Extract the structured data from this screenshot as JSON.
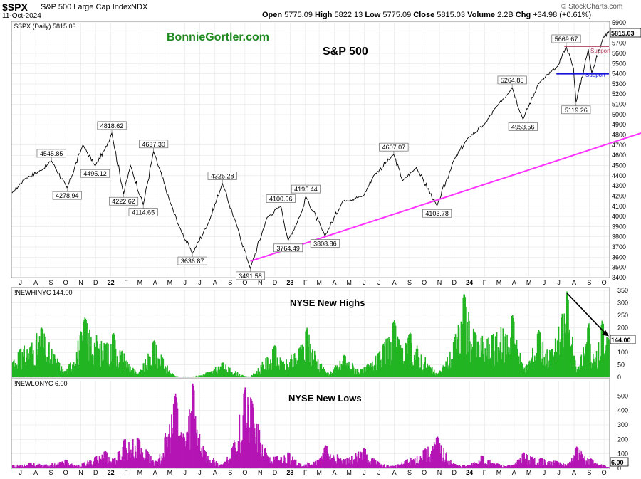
{
  "header": {
    "symbol": "$SPX",
    "name": "S&P 500 Large Cap Index",
    "exchange": "INDX",
    "date": "11-Oct-2024",
    "open_label": "Open",
    "open": "5775.09",
    "high_label": "High",
    "high": "5822.13",
    "low_label": "Low",
    "low": "5775.09",
    "close_label": "Close",
    "close": "5815.03",
    "volume_label": "Volume",
    "volume": "2.2B",
    "chg_label": "Chg",
    "chg": "+34.98 (+0.61%)",
    "copyright": "© StockCharts.com"
  },
  "panels": {
    "price_legend": "$SPX (Daily) 5815.03",
    "watermark": "BonnieGortler.com",
    "price_title": "S&P 500",
    "support_label": "Support",
    "support_label_2": "Support",
    "highs_legend": "!NEWHINYC 144.00",
    "highs_title": "NYSE New Highs",
    "highs_last": "144.00",
    "lows_legend": "!NEWLONYC 6.00",
    "lows_title": "NYSE New Lows",
    "lows_last": "6.00"
  },
  "colors": {
    "price": "#000000",
    "highs": "#22b522",
    "lows": "#b515b5",
    "trendline": "#ff33ff",
    "support": "#1414d8",
    "resistance": "#b34060",
    "watermark": "#1f8a1f",
    "arrow": "#000000"
  },
  "chart_data": [
    {
      "type": "line",
      "title": "S&P 500",
      "series_name": "$SPX (Daily)",
      "ylim": [
        3400,
        5900
      ],
      "y_ticks": [
        3400,
        3500,
        3600,
        3700,
        3800,
        3900,
        4000,
        4100,
        4200,
        4300,
        4400,
        4500,
        4600,
        4700,
        4800,
        4900,
        5000,
        5100,
        5200,
        5300,
        5400,
        5500,
        5600,
        5700,
        5800,
        5900
      ],
      "x_ticks": [
        "J",
        "A",
        "S",
        "O",
        "N",
        "D",
        "22",
        "F",
        "M",
        "A",
        "M",
        "J",
        "J",
        "A",
        "S",
        "O",
        "N",
        "D",
        "23",
        "F",
        "M",
        "A",
        "M",
        "J",
        "J",
        "A",
        "S",
        "O",
        "N",
        "D",
        "24",
        "F",
        "M",
        "A",
        "M",
        "J",
        "J",
        "A",
        "S",
        "O"
      ],
      "x_range": [
        "2021-06-14",
        "2024-10-11"
      ],
      "points": [
        [
          "2021-06-14",
          4230
        ],
        [
          "2021-07-10",
          4370
        ],
        [
          "2021-08-15",
          4460
        ],
        [
          "2021-09-02",
          4545.85
        ],
        [
          "2021-10-04",
          4278.94
        ],
        [
          "2021-11-05",
          4700
        ],
        [
          "2021-11-30",
          4495.12
        ],
        [
          "2021-12-20",
          4660
        ],
        [
          "2022-01-03",
          4818.62
        ],
        [
          "2022-01-27",
          4222.62
        ],
        [
          "2022-02-10",
          4500
        ],
        [
          "2022-03-08",
          4114.65
        ],
        [
          "2022-03-29",
          4637.3
        ],
        [
          "2022-05-01",
          4150
        ],
        [
          "2022-05-20",
          3900
        ],
        [
          "2022-06-16",
          3636.87
        ],
        [
          "2022-07-20",
          3950
        ],
        [
          "2022-08-16",
          4325.28
        ],
        [
          "2022-09-15",
          3900
        ],
        [
          "2022-10-12",
          3491.58
        ],
        [
          "2022-11-15",
          3990
        ],
        [
          "2022-12-13",
          4100.96
        ],
        [
          "2022-12-28",
          3764.49
        ],
        [
          "2023-01-25",
          4050
        ],
        [
          "2023-02-02",
          4195.44
        ],
        [
          "2023-03-13",
          3808.86
        ],
        [
          "2023-04-18",
          4150
        ],
        [
          "2023-05-30",
          4200
        ],
        [
          "2023-06-20",
          4400
        ],
        [
          "2023-07-31",
          4607.07
        ],
        [
          "2023-08-18",
          4350
        ],
        [
          "2023-09-15",
          4480
        ],
        [
          "2023-10-27",
          4103.78
        ],
        [
          "2023-11-30",
          4550
        ],
        [
          "2023-12-29",
          4770
        ],
        [
          "2024-01-31",
          4900
        ],
        [
          "2024-02-29",
          5100
        ],
        [
          "2024-03-28",
          5264.85
        ],
        [
          "2024-04-19",
          4953.56
        ],
        [
          "2024-05-20",
          5300
        ],
        [
          "2024-06-28",
          5470
        ],
        [
          "2024-07-16",
          5669.67
        ],
        [
          "2024-07-31",
          5450
        ],
        [
          "2024-08-05",
          5119.26
        ],
        [
          "2024-08-30",
          5640
        ],
        [
          "2024-09-06",
          5410
        ],
        [
          "2024-09-30",
          5760
        ],
        [
          "2024-10-11",
          5815.03
        ]
      ],
      "annotations": [
        {
          "date": "2021-09-02",
          "value": 4545.85,
          "text": "4545.85",
          "pos": "above"
        },
        {
          "date": "2021-10-04",
          "value": 4278.94,
          "text": "4278.94",
          "pos": "below"
        },
        {
          "date": "2021-11-30",
          "value": 4495.12,
          "text": "4495.12",
          "pos": "below"
        },
        {
          "date": "2022-01-03",
          "value": 4818.62,
          "text": "4818.62",
          "pos": "above"
        },
        {
          "date": "2022-01-27",
          "value": 4222.62,
          "text": "4222.62",
          "pos": "below"
        },
        {
          "date": "2022-03-08",
          "value": 4114.65,
          "text": "4114.65",
          "pos": "below"
        },
        {
          "date": "2022-03-29",
          "value": 4637.3,
          "text": "4637.30",
          "pos": "above"
        },
        {
          "date": "2022-06-16",
          "value": 3636.87,
          "text": "3636.87",
          "pos": "below"
        },
        {
          "date": "2022-08-16",
          "value": 4325.28,
          "text": "4325.28",
          "pos": "above"
        },
        {
          "date": "2022-10-12",
          "value": 3491.58,
          "text": "3491.58",
          "pos": "below"
        },
        {
          "date": "2022-12-13",
          "value": 4100.96,
          "text": "4100.96",
          "pos": "above"
        },
        {
          "date": "2022-12-28",
          "value": 3764.49,
          "text": "3764.49",
          "pos": "below"
        },
        {
          "date": "2023-02-02",
          "value": 4195.44,
          "text": "4195.44",
          "pos": "above"
        },
        {
          "date": "2023-03-13",
          "value": 3808.86,
          "text": "3808.86",
          "pos": "below"
        },
        {
          "date": "2023-07-31",
          "value": 4607.07,
          "text": "4607.07",
          "pos": "above"
        },
        {
          "date": "2023-10-27",
          "value": 4103.78,
          "text": "4103.78",
          "pos": "below"
        },
        {
          "date": "2024-03-28",
          "value": 5264.85,
          "text": "5264.85",
          "pos": "above"
        },
        {
          "date": "2024-04-19",
          "value": 4953.56,
          "text": "4953.56",
          "pos": "below"
        },
        {
          "date": "2024-07-16",
          "value": 5669.67,
          "text": "5669.67",
          "pos": "above"
        },
        {
          "date": "2024-08-05",
          "value": 5119.26,
          "text": "5119.26",
          "pos": "below"
        }
      ],
      "trendline": [
        [
          "2022-10-12",
          3560
        ],
        [
          "2024-10-11",
          4780
        ]
      ],
      "support": [
        [
          "2024-06-26",
          5400
        ],
        [
          "2024-10-11",
          5400
        ]
      ],
      "resistance": [
        [
          "2024-07-12",
          5669
        ],
        [
          "2024-10-11",
          5669
        ]
      ]
    },
    {
      "type": "bar",
      "title": "NYSE New Highs",
      "series_name": "!NEWHINYC",
      "last": 144.0,
      "ylim": [
        0,
        350
      ],
      "y_ticks": [
        0,
        50,
        100,
        150,
        200,
        250,
        300,
        350
      ],
      "peaks": [
        [
          "2021-06-14",
          60
        ],
        [
          "2021-06-28",
          110
        ],
        [
          "2021-08-12",
          200
        ],
        [
          "2021-09-30",
          20
        ],
        [
          "2021-11-08",
          240
        ],
        [
          "2021-12-20",
          130
        ],
        [
          "2022-01-05",
          180
        ],
        [
          "2022-02-24",
          10
        ],
        [
          "2022-03-29",
          150
        ],
        [
          "2022-04-15",
          80
        ],
        [
          "2022-05-10",
          5
        ],
        [
          "2022-06-15",
          2
        ],
        [
          "2022-07-15",
          20
        ],
        [
          "2022-08-16",
          60
        ],
        [
          "2022-09-28",
          5
        ],
        [
          "2022-10-12",
          3
        ],
        [
          "2022-11-30",
          130
        ],
        [
          "2022-12-15",
          60
        ],
        [
          "2023-01-20",
          120
        ],
        [
          "2023-02-03",
          200
        ],
        [
          "2023-03-15",
          15
        ],
        [
          "2023-04-20",
          90
        ],
        [
          "2023-05-25",
          30
        ],
        [
          "2023-06-30",
          100
        ],
        [
          "2023-07-31",
          230
        ],
        [
          "2023-08-15",
          110
        ],
        [
          "2023-09-01",
          180
        ],
        [
          "2023-10-27",
          10
        ],
        [
          "2023-11-30",
          150
        ],
        [
          "2023-12-20",
          340
        ],
        [
          "2024-01-10",
          180
        ],
        [
          "2024-02-15",
          170
        ],
        [
          "2024-03-28",
          250
        ],
        [
          "2024-04-19",
          30
        ],
        [
          "2024-05-20",
          190
        ],
        [
          "2024-06-14",
          100
        ],
        [
          "2024-07-17",
          350
        ],
        [
          "2024-08-05",
          20
        ],
        [
          "2024-08-30",
          220
        ],
        [
          "2024-09-10",
          60
        ],
        [
          "2024-09-26",
          230
        ],
        [
          "2024-10-11",
          144
        ]
      ]
    },
    {
      "type": "bar",
      "title": "NYSE New Lows",
      "series_name": "!NEWLONYC",
      "last": 6.0,
      "ylim": [
        0,
        600
      ],
      "y_ticks": [
        0,
        100,
        200,
        300,
        400,
        500
      ],
      "peaks": [
        [
          "2021-06-14",
          20
        ],
        [
          "2021-07-19",
          40
        ],
        [
          "2021-08-19",
          25
        ],
        [
          "2021-09-30",
          60
        ],
        [
          "2021-10-20",
          15
        ],
        [
          "2021-11-30",
          80
        ],
        [
          "2021-12-20",
          120
        ],
        [
          "2022-01-05",
          60
        ],
        [
          "2022-01-27",
          200
        ],
        [
          "2022-02-24",
          210
        ],
        [
          "2022-03-15",
          120
        ],
        [
          "2022-04-05",
          40
        ],
        [
          "2022-05-12",
          520
        ],
        [
          "2022-05-25",
          200
        ],
        [
          "2022-06-16",
          590
        ],
        [
          "2022-07-10",
          120
        ],
        [
          "2022-08-15",
          20
        ],
        [
          "2022-09-05",
          150
        ],
        [
          "2022-09-30",
          560
        ],
        [
          "2022-10-13",
          480
        ],
        [
          "2022-11-15",
          80
        ],
        [
          "2022-12-28",
          110
        ],
        [
          "2023-01-20",
          30
        ],
        [
          "2023-02-28",
          60
        ],
        [
          "2023-03-13",
          160
        ],
        [
          "2023-04-20",
          60
        ],
        [
          "2023-05-31",
          140
        ],
        [
          "2023-06-30",
          40
        ],
        [
          "2023-07-31",
          15
        ],
        [
          "2023-08-25",
          60
        ],
        [
          "2023-09-30",
          130
        ],
        [
          "2023-10-27",
          220
        ],
        [
          "2023-11-30",
          30
        ],
        [
          "2023-12-29",
          20
        ],
        [
          "2024-01-25",
          90
        ],
        [
          "2024-02-28",
          30
        ],
        [
          "2024-03-28",
          20
        ],
        [
          "2024-04-19",
          110
        ],
        [
          "2024-05-25",
          70
        ],
        [
          "2024-06-25",
          50
        ],
        [
          "2024-07-20",
          30
        ],
        [
          "2024-08-05",
          150
        ],
        [
          "2024-09-06",
          60
        ],
        [
          "2024-09-30",
          20
        ],
        [
          "2024-10-11",
          6
        ]
      ]
    }
  ]
}
